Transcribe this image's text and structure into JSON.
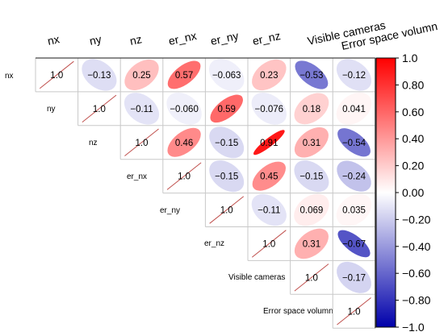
{
  "chart_data": {
    "type": "heatmap",
    "variables": [
      "nx",
      "ny",
      "nz",
      "er_nx",
      "er_ny",
      "er_nz",
      "Visible cameras",
      "Error space volumn"
    ],
    "row_labels": [
      "nx",
      "ny",
      "nz",
      "er_nx",
      "er_ny",
      "er_nz",
      "Visible cameras",
      "Error space volumn"
    ],
    "matrix_upper": [
      [
        "1.0",
        "−0.13",
        "0.25",
        "0.57",
        "−0.063",
        "0.23",
        "−0.53",
        "−0.12"
      ],
      [
        null,
        "1.0",
        "−0.11",
        "−0.060",
        "0.59",
        "−0.076",
        "0.18",
        "0.041"
      ],
      [
        null,
        null,
        "1.0",
        "0.46",
        "−0.15",
        "0.91",
        "0.31",
        "−0.54"
      ],
      [
        null,
        null,
        null,
        "1.0",
        "−0.15",
        "0.45",
        "−0.15",
        "−0.24"
      ],
      [
        null,
        null,
        null,
        null,
        "1.0",
        "−0.11",
        "0.069",
        "0.035"
      ],
      [
        null,
        null,
        null,
        null,
        null,
        "1.0",
        "0.31",
        "−0.67"
      ],
      [
        null,
        null,
        null,
        null,
        null,
        null,
        "1.0",
        "−0.17"
      ],
      [
        null,
        null,
        null,
        null,
        null,
        null,
        null,
        "1.0"
      ]
    ],
    "colorbar": {
      "ticks": [
        "1.0",
        "0.80",
        "0.60",
        "0.40",
        "0.20",
        "0.00",
        "−0.20",
        "−0.40",
        "−0.60",
        "−0.80",
        "−1.0"
      ],
      "range": [
        -1,
        1
      ],
      "high_color": "#ff0000",
      "mid_color": "#ffffff",
      "low_color": "#0000aa"
    },
    "shape": "ellipse",
    "diagonal_mark_color": "#c0504d"
  }
}
